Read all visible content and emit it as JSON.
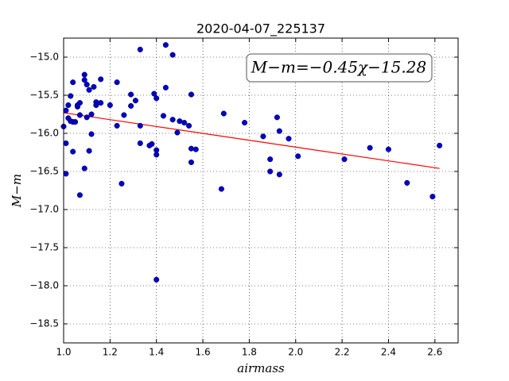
{
  "chart_data": {
    "type": "scatter",
    "title": "2020-04-07_225137",
    "x_label": "airmass",
    "y_label": "M−m",
    "annotation": "M−m=−0.45χ−15.28",
    "color": "#0000cc",
    "grid": true,
    "y_inverted": true,
    "xlim": [
      1.0,
      2.7
    ],
    "ylim": [
      -18.75,
      -14.75
    ],
    "xticks": [
      {
        "value": 1.0,
        "label": "1.0"
      },
      1.2,
      1.4,
      1.6,
      1.8,
      {
        "value": 2.0,
        "label": "2.0"
      },
      2.2,
      2.4,
      2.6
    ],
    "yticks": [
      {
        "value": -15.0,
        "label": "−15.0"
      },
      {
        "value": -15.5,
        "label": "−15.5"
      },
      {
        "value": -16.0,
        "label": "−16.0"
      },
      {
        "value": -16.5,
        "label": "−16.5"
      },
      {
        "value": -17.0,
        "label": "−17.0"
      },
      {
        "value": -17.5,
        "label": "−17.5"
      },
      {
        "value": -18.0,
        "label": "−18.0"
      },
      {
        "value": -18.5,
        "label": "−18.5"
      }
    ],
    "x": [
      1.0,
      1.01,
      1.01,
      1.01,
      1.02,
      1.02,
      1.03,
      1.03,
      1.04,
      1.04,
      1.04,
      1.05,
      1.06,
      1.06,
      1.07,
      1.07,
      1.07,
      1.09,
      1.09,
      1.09,
      1.1,
      1.1,
      1.11,
      1.11,
      1.12,
      1.12,
      1.13,
      1.14,
      1.14,
      1.16,
      1.16,
      1.2,
      1.23,
      1.23,
      1.25,
      1.26,
      1.29,
      1.29,
      1.31,
      1.33,
      1.33,
      1.33,
      1.37,
      1.38,
      1.39,
      1.4,
      1.4,
      1.4,
      1.4,
      1.43,
      1.44,
      1.44,
      1.47,
      1.47,
      1.49,
      1.5,
      1.52,
      1.54,
      1.55,
      1.55,
      1.55,
      1.57,
      1.68,
      1.69,
      1.78,
      1.86,
      1.89,
      1.89,
      1.92,
      1.93,
      1.93,
      1.97,
      2.01,
      2.21,
      2.32,
      2.4,
      2.48,
      2.59,
      2.62
    ],
    "values": [
      -15.91,
      -16.53,
      -15.7,
      -16.13,
      -15.8,
      -15.63,
      -15.84,
      -15.51,
      -15.85,
      -15.33,
      -16.24,
      -15.85,
      -15.65,
      -15.63,
      -15.6,
      -16.81,
      -15.76,
      -16.46,
      -15.23,
      -15.3,
      -15.36,
      -15.79,
      -16.23,
      -15.43,
      -15.75,
      -16.01,
      -15.39,
      -15.59,
      -15.63,
      -15.6,
      -15.29,
      -15.63,
      -15.33,
      -15.9,
      -16.66,
      -15.76,
      -15.64,
      -15.49,
      -15.57,
      -14.9,
      -15.9,
      -16.13,
      -16.16,
      -16.14,
      -15.48,
      -15.54,
      -16.28,
      -17.92,
      -16.22,
      -15.77,
      -14.84,
      -15.4,
      -14.97,
      -15.82,
      -15.99,
      -15.84,
      -15.86,
      -15.9,
      -16.38,
      -16.2,
      -15.49,
      -16.21,
      -16.73,
      -15.74,
      -15.86,
      -16.04,
      -16.34,
      -16.5,
      -15.79,
      -16.54,
      -15.97,
      -16.07,
      -16.3,
      -16.34,
      -16.19,
      -16.21,
      -16.65,
      -16.83,
      -16.16
    ],
    "fit": {
      "x": [
        1.0,
        2.62
      ],
      "values": [
        -15.73,
        -16.46
      ],
      "color": "#ff0000"
    }
  }
}
